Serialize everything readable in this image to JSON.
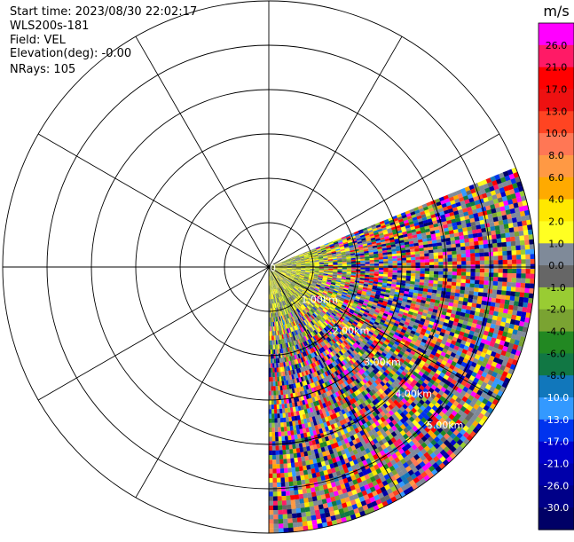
{
  "info": {
    "start_time": "Start time: 2023/08/30 22:02:17",
    "station": "WLS200s-181",
    "field": "Field: VEL",
    "elevation": "Elevation(deg): -0.00",
    "nrays": "NRays: 105"
  },
  "chart_data": {
    "type": "heatmap",
    "projection": "polar (PPI)",
    "sector_azimuth_deg": [
      68,
      180
    ],
    "range_rings_km": [
      0,
      1,
      2,
      3,
      4,
      5,
      6
    ],
    "range_labels": [
      "0",
      "1.00km",
      "2.00km",
      "3.00km",
      "4.00km",
      "5.00km"
    ],
    "spoke_interval_deg": 30,
    "colorbar": {
      "unit": "m/s",
      "ticks": [
        "26.0",
        "21.0",
        "17.0",
        "13.0",
        "10.0",
        "8.0",
        "6.0",
        "4.0",
        "2.0",
        "1.0",
        "0.0",
        "-1.0",
        "-2.0",
        "-4.0",
        "-6.0",
        "-8.0",
        "-10.0",
        "-13.0",
        "-17.0",
        "-21.0",
        "-26.0",
        "-30.0"
      ],
      "colors": [
        "#ff00ff",
        "#ff1a66",
        "#ff0000",
        "#ee1111",
        "#ff4422",
        "#ff7755",
        "#ff9944",
        "#ffaa00",
        "#ffe800",
        "#ffff22",
        "#7f8a99",
        "#666666",
        "#99cc33",
        "#7aa332",
        "#228822",
        "#117744",
        "#1177bb",
        "#3399ff",
        "#0033ee",
        "#0000cc",
        "#0000aa",
        "#000088",
        "#000066"
      ]
    }
  }
}
